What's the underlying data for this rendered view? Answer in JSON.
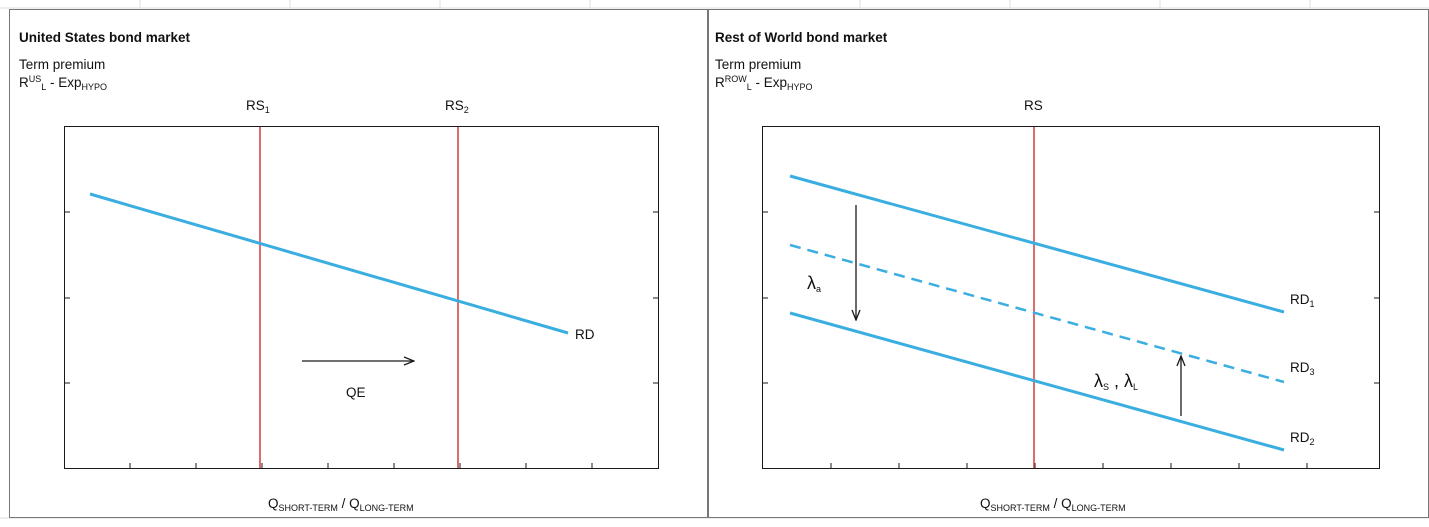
{
  "colors": {
    "curve": "#3aaee0",
    "supply": "#d43c3c",
    "frame": "#1a1a1a",
    "panel_border": "#777777",
    "gridline": "#dddddd"
  },
  "left_panel": {
    "title": "United  States bond  market",
    "y_label_line1": "Term premium",
    "y_label_line2": {
      "base": "R",
      "sup": "US",
      "sub": "L",
      "rest": " - Exp",
      "rest_sub": "HYPO"
    },
    "supply_labels": [
      {
        "base": "RS",
        "sub": "1"
      },
      {
        "base": "RS",
        "sub": "2"
      }
    ],
    "demand_label": "RD",
    "shift_label": "QE",
    "x_label": {
      "q1": "Q",
      "q1_sub": "SHORT-TERM",
      "sep": " / ",
      "q2": "Q",
      "q2_sub": "LONG-TERM"
    }
  },
  "right_panel": {
    "title": "Rest of World bond  market",
    "y_label_line1": "Term premium",
    "y_label_line2": {
      "base": "R",
      "sup": "ROW",
      "sub": "L",
      "rest": " - Exp",
      "rest_sub": "HYPO"
    },
    "supply_label": "RS",
    "demand_labels": [
      {
        "base": "RD",
        "sub": "1"
      },
      {
        "base": "RD",
        "sub": "3"
      },
      {
        "base": "RD",
        "sub": "2"
      }
    ],
    "lambda_down": {
      "symbol": "λ",
      "sub": "a"
    },
    "lambda_up": {
      "s": "λ",
      "s_sub": "S",
      "sep": " , ",
      "l": "λ",
      "l_sub": "L"
    },
    "x_label": {
      "q1": "Q",
      "q1_sub": "SHORT-TERM",
      "sep": " / ",
      "q2": "Q",
      "q2_sub": "LONG-TERM"
    }
  }
}
